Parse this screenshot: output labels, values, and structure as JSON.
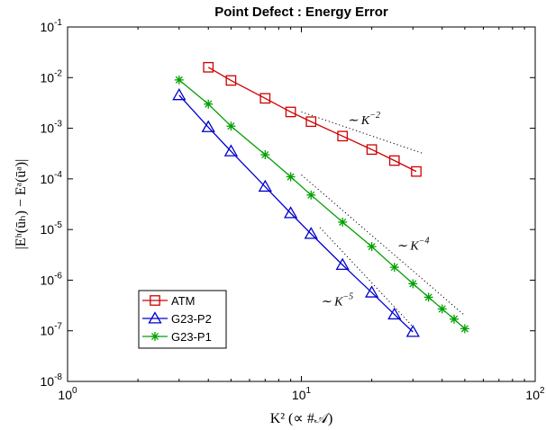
{
  "chart_data": {
    "type": "line",
    "title": "Point Defect : Energy Error",
    "xlabel": "K² (∝ #𝒜)",
    "ylabel": "|Eʰ(ūₕ) − Eᵃ(ūᵃ)|",
    "xscale": "log",
    "yscale": "log",
    "xlim": [
      1,
      100
    ],
    "ylim": [
      1e-08,
      0.1
    ],
    "grid": false,
    "legend_position": "bottom-left",
    "x_ticks": [
      {
        "value": 1,
        "base": "10",
        "exp": "0"
      },
      {
        "value": 10,
        "base": "10",
        "exp": "1"
      },
      {
        "value": 100,
        "base": "10",
        "exp": "2"
      }
    ],
    "y_ticks": [
      {
        "value": 1e-08,
        "base": "10",
        "exp": "-8"
      },
      {
        "value": 1e-07,
        "base": "10",
        "exp": "-7"
      },
      {
        "value": 1e-06,
        "base": "10",
        "exp": "-6"
      },
      {
        "value": 1e-05,
        "base": "10",
        "exp": "-5"
      },
      {
        "value": 0.0001,
        "base": "10",
        "exp": "-4"
      },
      {
        "value": 0.001,
        "base": "10",
        "exp": "-3"
      },
      {
        "value": 0.01,
        "base": "10",
        "exp": "-2"
      },
      {
        "value": 0.1,
        "base": "10",
        "exp": "-1"
      }
    ],
    "series": [
      {
        "name": "ATM",
        "color": "#cc0000",
        "marker": "square",
        "x": [
          4,
          5,
          7,
          9,
          11,
          15,
          20,
          25,
          31
        ],
        "y": [
          0.016,
          0.0088,
          0.0039,
          0.0021,
          0.00135,
          0.0007,
          0.00038,
          0.00023,
          0.00014
        ]
      },
      {
        "name": "G23-P2",
        "color": "#0000cc",
        "marker": "triangle",
        "x": [
          3,
          4,
          5,
          7,
          9,
          11,
          15,
          20,
          25,
          30
        ],
        "y": [
          0.0045,
          0.00105,
          0.00035,
          7e-05,
          2.1e-05,
          8.2e-06,
          2e-06,
          5.7e-07,
          2.1e-07,
          9.5e-08
        ]
      },
      {
        "name": "G23-P1",
        "color": "#00a000",
        "marker": "asterisk",
        "x": [
          3,
          4,
          5,
          7,
          9,
          11,
          15,
          20,
          25,
          30,
          35,
          40,
          45,
          50
        ],
        "y": [
          0.009,
          0.003,
          0.0011,
          0.0003,
          0.00011,
          4.8e-05,
          1.4e-05,
          4.6e-06,
          1.8e-06,
          8.5e-07,
          4.6e-07,
          2.7e-07,
          1.7e-07,
          1.1e-07
        ]
      }
    ],
    "reference_lines": [
      {
        "label_prefix": "∼ K",
        "label_exp": "−2",
        "x": [
          10,
          33
        ],
        "y": [
          0.0021,
          0.00032
        ],
        "label_x": 18.5,
        "label_y": 0.0012
      },
      {
        "label_prefix": "∼ K",
        "label_exp": "−4",
        "x": [
          10,
          50
        ],
        "y": [
          0.00012,
          2e-07
        ],
        "label_x": 30,
        "label_y": 4e-06
      },
      {
        "label_prefix": "∼ K",
        "label_exp": "−5",
        "x": [
          12,
          30
        ],
        "y": [
          1.1e-05,
          1.2e-07
        ],
        "label_x": 14.2,
        "label_y": 3.2e-07
      }
    ]
  }
}
